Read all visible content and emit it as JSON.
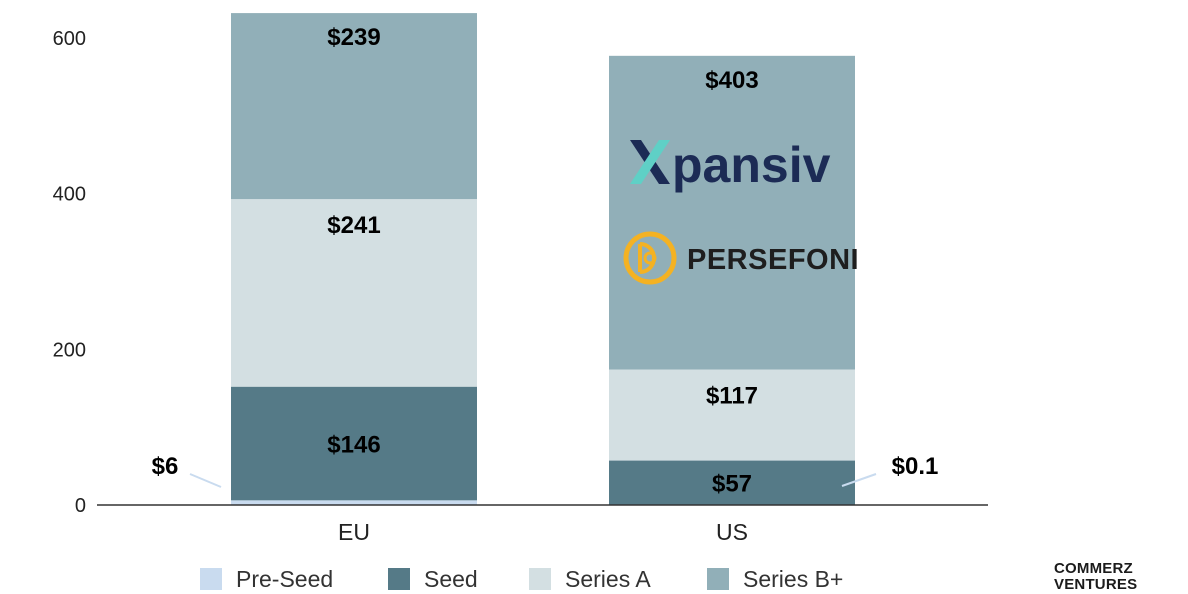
{
  "chart_data": {
    "type": "bar",
    "stacked": true,
    "categories": [
      "EU",
      "US"
    ],
    "series": [
      {
        "name": "Pre-Seed",
        "color": "#c9dbef",
        "values": [
          6,
          0.1
        ],
        "labels": [
          "$6",
          "$0.1"
        ]
      },
      {
        "name": "Seed",
        "color": "#557a87",
        "values": [
          146,
          57
        ],
        "labels": [
          "$146",
          "$57"
        ]
      },
      {
        "name": "Series A",
        "color": "#d3dfe2",
        "values": [
          241,
          117
        ],
        "labels": [
          "$241",
          "$117"
        ]
      },
      {
        "name": "Series B+",
        "color": "#91afb8",
        "values": [
          239,
          403
        ],
        "labels": [
          "$239",
          "$403"
        ]
      }
    ],
    "ylim": [
      0,
      600
    ],
    "yticks": [
      0,
      200,
      400,
      600
    ],
    "grid": false,
    "legend": "bottom",
    "title": "",
    "xlabel": "",
    "ylabel": ""
  },
  "logos": {
    "xpansiv": {
      "text": "pansiv",
      "icon": "x-mark-icon",
      "color": "#1c2b55",
      "accent": "#5fd0c6"
    },
    "persefoni": {
      "text": "PERSEFONI",
      "icon": "persefoni-spiral-icon",
      "color": "#1e1e1e",
      "accent": "#f4b223"
    }
  },
  "brand": {
    "line1": "COMMERZ",
    "line2": "VENTURES"
  }
}
